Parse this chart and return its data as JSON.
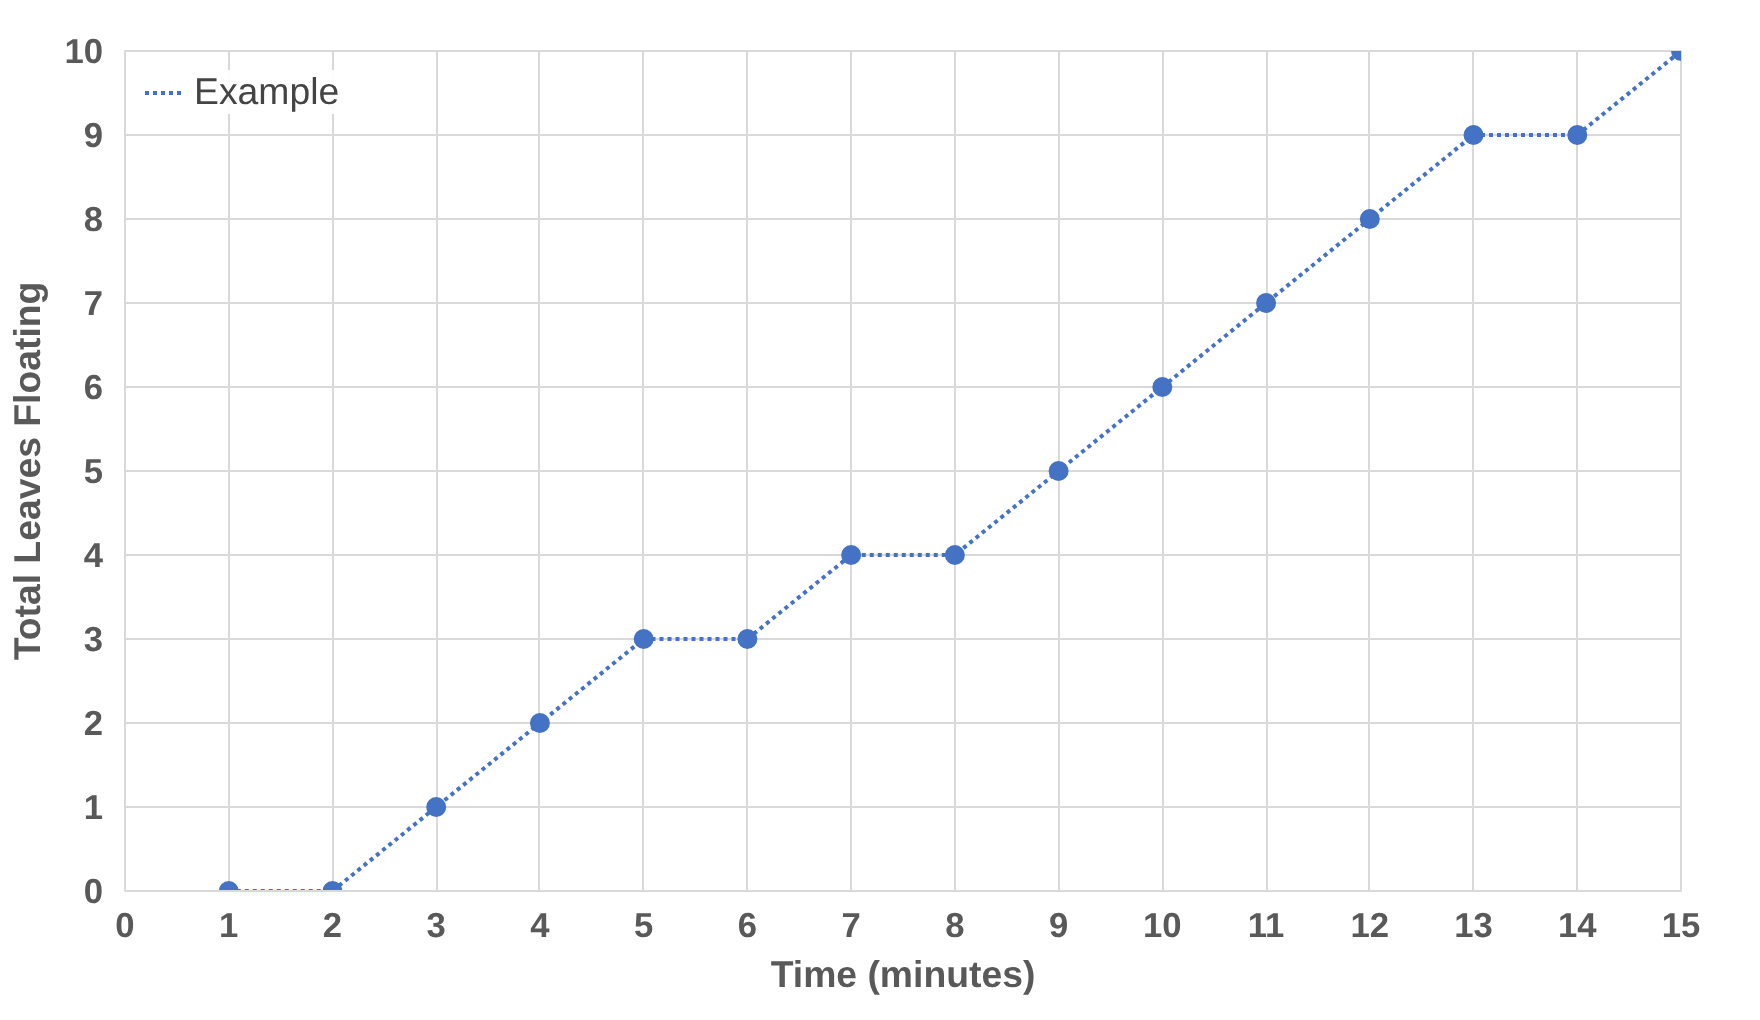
{
  "chart_data": {
    "type": "line",
    "xlabel": "Time (minutes)",
    "ylabel": "Total Leaves Floating",
    "x": [
      1,
      2,
      3,
      4,
      5,
      6,
      7,
      8,
      9,
      10,
      11,
      12,
      13,
      14,
      15
    ],
    "series": [
      {
        "name": "Example",
        "color": "#4472c4",
        "values": [
          0,
          0,
          1,
          2,
          3,
          3,
          4,
          4,
          5,
          6,
          7,
          8,
          9,
          9,
          10
        ]
      }
    ],
    "xlim": [
      0,
      15
    ],
    "ylim": [
      0,
      10
    ],
    "xticks": [
      0,
      1,
      2,
      3,
      4,
      5,
      6,
      7,
      8,
      9,
      10,
      11,
      12,
      13,
      14,
      15
    ],
    "yticks": [
      0,
      1,
      2,
      3,
      4,
      5,
      6,
      7,
      8,
      9,
      10
    ],
    "grid": true,
    "legend": "top left",
    "marker": "circle",
    "line_style": "dotted"
  }
}
